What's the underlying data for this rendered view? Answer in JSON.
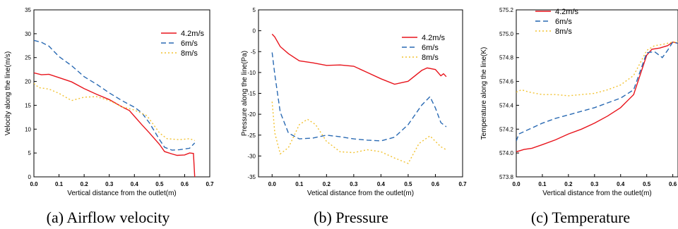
{
  "chart_data": [
    {
      "type": "line",
      "caption": "(a) Airflow velocity",
      "xlabel": "Vertical distance from the outlet(m)",
      "ylabel": "Velocity along the line(m/s)",
      "xlim": [
        0,
        0.7
      ],
      "ylim": [
        0,
        35
      ],
      "xticks": [
        "0.0",
        "0.1",
        "0.2",
        "0.3",
        "0.4",
        "0.5",
        "0.6",
        "0.7"
      ],
      "yticks": [
        "0",
        "5",
        "10",
        "15",
        "20",
        "25",
        "30",
        "35"
      ],
      "grid": false,
      "legend_position": "top-right",
      "series": [
        {
          "name": "4.2m/s",
          "color": "#e8141c",
          "dash": "solid",
          "points": [
            [
              0.0,
              21.8
            ],
            [
              0.03,
              21.4
            ],
            [
              0.06,
              21.5
            ],
            [
              0.1,
              20.8
            ],
            [
              0.15,
              19.9
            ],
            [
              0.2,
              18.5
            ],
            [
              0.25,
              17.3
            ],
            [
              0.3,
              16.2
            ],
            [
              0.35,
              14.7
            ],
            [
              0.38,
              13.9
            ],
            [
              0.4,
              12.7
            ],
            [
              0.43,
              10.9
            ],
            [
              0.46,
              9.2
            ],
            [
              0.5,
              6.8
            ],
            [
              0.52,
              5.3
            ],
            [
              0.55,
              4.8
            ],
            [
              0.57,
              4.5
            ],
            [
              0.6,
              4.6
            ],
            [
              0.62,
              5.0
            ],
            [
              0.635,
              4.9
            ],
            [
              0.64,
              0.0
            ]
          ]
        },
        {
          "name": "6m/s",
          "color": "#2a6ab3",
          "dash": "dashed",
          "points": [
            [
              0.0,
              28.6
            ],
            [
              0.03,
              28.2
            ],
            [
              0.06,
              27.4
            ],
            [
              0.1,
              25.2
            ],
            [
              0.15,
              23.3
            ],
            [
              0.2,
              21.0
            ],
            [
              0.25,
              19.4
            ],
            [
              0.3,
              17.6
            ],
            [
              0.35,
              16.0
            ],
            [
              0.4,
              14.6
            ],
            [
              0.43,
              13.4
            ],
            [
              0.46,
              11.3
            ],
            [
              0.5,
              7.8
            ],
            [
              0.52,
              6.2
            ],
            [
              0.55,
              5.6
            ],
            [
              0.58,
              5.7
            ],
            [
              0.62,
              6.0
            ],
            [
              0.64,
              7.1
            ]
          ]
        },
        {
          "name": "8m/s",
          "color": "#f2c230",
          "dash": "dotted",
          "points": [
            [
              0.0,
              19.6
            ],
            [
              0.02,
              18.7
            ],
            [
              0.06,
              18.4
            ],
            [
              0.1,
              17.5
            ],
            [
              0.15,
              16.0
            ],
            [
              0.2,
              16.7
            ],
            [
              0.25,
              16.8
            ],
            [
              0.3,
              16.0
            ],
            [
              0.35,
              14.7
            ],
            [
              0.4,
              14.0
            ],
            [
              0.45,
              12.8
            ],
            [
              0.5,
              9.2
            ],
            [
              0.53,
              8.0
            ],
            [
              0.58,
              7.8
            ],
            [
              0.62,
              8.0
            ],
            [
              0.64,
              7.6
            ]
          ]
        }
      ]
    },
    {
      "type": "line",
      "caption": "(b) Pressure",
      "xlabel": "Vetical distance from the outlet(m)",
      "ylabel": "Pressure along the line(Pa)",
      "xlim": [
        -0.05,
        0.7
      ],
      "ylim": [
        -35,
        5
      ],
      "xticks": [
        "0.0",
        "0.1",
        "0.2",
        "0.3",
        "0.4",
        "0.5",
        "0.6",
        "0.7"
      ],
      "yticks": [
        "-35",
        "-30",
        "-25",
        "-20",
        "-15",
        "-10",
        "-5",
        "0",
        "5"
      ],
      "grid": false,
      "legend_position": "top-right",
      "series": [
        {
          "name": "4.2m/s",
          "color": "#e8141c",
          "dash": "solid",
          "points": [
            [
              0.0,
              -0.8
            ],
            [
              0.01,
              -1.5
            ],
            [
              0.03,
              -3.8
            ],
            [
              0.06,
              -5.5
            ],
            [
              0.1,
              -7.2
            ],
            [
              0.15,
              -7.7
            ],
            [
              0.2,
              -8.3
            ],
            [
              0.25,
              -8.2
            ],
            [
              0.3,
              -8.5
            ],
            [
              0.35,
              -10.0
            ],
            [
              0.4,
              -11.5
            ],
            [
              0.45,
              -12.8
            ],
            [
              0.5,
              -12.1
            ],
            [
              0.55,
              -9.5
            ],
            [
              0.57,
              -8.9
            ],
            [
              0.6,
              -9.3
            ],
            [
              0.62,
              -10.8
            ],
            [
              0.63,
              -10.3
            ],
            [
              0.64,
              -11.0
            ]
          ]
        },
        {
          "name": "6m/s",
          "color": "#2a6ab3",
          "dash": "dashed",
          "points": [
            [
              0.0,
              -5.2
            ],
            [
              0.01,
              -10.5
            ],
            [
              0.03,
              -19.5
            ],
            [
              0.06,
              -24.5
            ],
            [
              0.1,
              -25.9
            ],
            [
              0.15,
              -25.7
            ],
            [
              0.2,
              -25.0
            ],
            [
              0.25,
              -25.4
            ],
            [
              0.3,
              -25.9
            ],
            [
              0.35,
              -26.2
            ],
            [
              0.4,
              -26.4
            ],
            [
              0.45,
              -25.5
            ],
            [
              0.5,
              -22.5
            ],
            [
              0.55,
              -17.8
            ],
            [
              0.58,
              -15.8
            ],
            [
              0.6,
              -18.5
            ],
            [
              0.62,
              -22.0
            ],
            [
              0.64,
              -23.0
            ]
          ]
        },
        {
          "name": "8m/s",
          "color": "#f2c230",
          "dash": "dotted",
          "points": [
            [
              0.0,
              -17.0
            ],
            [
              0.01,
              -24.5
            ],
            [
              0.03,
              -29.5
            ],
            [
              0.06,
              -28.0
            ],
            [
              0.1,
              -22.5
            ],
            [
              0.13,
              -21.2
            ],
            [
              0.16,
              -22.5
            ],
            [
              0.2,
              -26.5
            ],
            [
              0.25,
              -29.0
            ],
            [
              0.3,
              -29.2
            ],
            [
              0.35,
              -28.5
            ],
            [
              0.4,
              -29.0
            ],
            [
              0.45,
              -30.5
            ],
            [
              0.5,
              -31.8
            ],
            [
              0.54,
              -27.0
            ],
            [
              0.58,
              -25.2
            ],
            [
              0.62,
              -27.8
            ],
            [
              0.64,
              -28.5
            ]
          ]
        }
      ]
    },
    {
      "type": "line",
      "caption": "(c) Temperature",
      "xlabel": "Vertical distance from the outlet(m)",
      "ylabel": "Temperature along the line(K)",
      "xlim": [
        0,
        0.62
      ],
      "ylim": [
        573.8,
        575.2
      ],
      "xticks": [
        "0.0",
        "0.1",
        "0.2",
        "0.3",
        "0.4",
        "0.5",
        "0.6"
      ],
      "yticks": [
        "573.8",
        "574.0",
        "574.2",
        "574.4",
        "574.6",
        "574.8",
        "575.0",
        "575.2"
      ],
      "grid": false,
      "legend_position": "top-right",
      "series": [
        {
          "name": "4.2m/s",
          "color": "#e8141c",
          "dash": "solid",
          "points": [
            [
              0.0,
              574.01
            ],
            [
              0.03,
              574.03
            ],
            [
              0.06,
              574.04
            ],
            [
              0.1,
              574.07
            ],
            [
              0.15,
              574.11
            ],
            [
              0.2,
              574.16
            ],
            [
              0.25,
              574.2
            ],
            [
              0.3,
              574.25
            ],
            [
              0.35,
              574.31
            ],
            [
              0.4,
              574.38
            ],
            [
              0.45,
              574.49
            ],
            [
              0.5,
              574.82
            ],
            [
              0.52,
              574.87
            ],
            [
              0.55,
              574.88
            ],
            [
              0.58,
              574.9
            ],
            [
              0.6,
              574.93
            ],
            [
              0.62,
              574.92
            ]
          ]
        },
        {
          "name": "6m/s",
          "color": "#2a6ab3",
          "dash": "dashed",
          "points": [
            [
              0.0,
              574.1
            ],
            [
              0.01,
              574.16
            ],
            [
              0.05,
              574.2
            ],
            [
              0.1,
              574.25
            ],
            [
              0.15,
              574.29
            ],
            [
              0.2,
              574.32
            ],
            [
              0.25,
              574.35
            ],
            [
              0.3,
              574.38
            ],
            [
              0.35,
              574.42
            ],
            [
              0.4,
              574.46
            ],
            [
              0.45,
              574.53
            ],
            [
              0.5,
              574.84
            ],
            [
              0.53,
              574.85
            ],
            [
              0.56,
              574.8
            ],
            [
              0.58,
              574.86
            ],
            [
              0.6,
              574.93
            ],
            [
              0.62,
              574.92
            ]
          ]
        },
        {
          "name": "8m/s",
          "color": "#f2c230",
          "dash": "dotted",
          "points": [
            [
              0.0,
              574.51
            ],
            [
              0.02,
              574.53
            ],
            [
              0.05,
              574.51
            ],
            [
              0.1,
              574.49
            ],
            [
              0.15,
              574.49
            ],
            [
              0.2,
              574.48
            ],
            [
              0.25,
              574.49
            ],
            [
              0.3,
              574.5
            ],
            [
              0.35,
              574.53
            ],
            [
              0.4,
              574.57
            ],
            [
              0.45,
              574.65
            ],
            [
              0.5,
              574.86
            ],
            [
              0.53,
              574.9
            ],
            [
              0.56,
              574.91
            ],
            [
              0.58,
              574.92
            ],
            [
              0.6,
              574.93
            ],
            [
              0.62,
              574.93
            ]
          ]
        }
      ]
    }
  ]
}
